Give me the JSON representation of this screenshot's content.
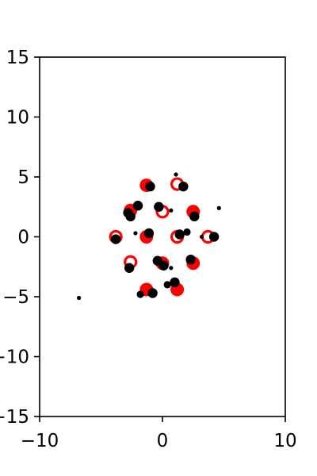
{
  "chart_data": {
    "type": "scatter",
    "title": "",
    "xlabel": "",
    "ylabel": "",
    "xlim": [
      -10,
      10
    ],
    "ylim": [
      -15,
      15
    ],
    "xticks": [
      -10,
      0,
      10
    ],
    "yticks": [
      -15,
      -10,
      -5,
      0,
      5,
      10,
      15
    ],
    "xtick_labels": [
      "−10",
      "0",
      "10"
    ],
    "ytick_labels": [
      "−15",
      "−10",
      "−5",
      "0",
      "5",
      "10",
      "15"
    ],
    "grid": false,
    "legend": "none",
    "colors": {
      "red": "#ff0000",
      "black": "#000000",
      "axes": "#000000",
      "background": "#ffffff"
    },
    "series": [
      {
        "marker": "filled-circle",
        "color": "#ff0000",
        "points": [
          {
            "x": -1.3,
            "y": 4.3
          },
          {
            "x": 2.5,
            "y": 2.1
          },
          {
            "x": -1.3,
            "y": 0.0
          },
          {
            "x": -1.3,
            "y": -4.4
          },
          {
            "x": 1.2,
            "y": -4.4
          },
          {
            "x": 2.5,
            "y": -2.2
          },
          {
            "x": 0.0,
            "y": -2.2
          },
          {
            "x": -2.6,
            "y": 2.2
          }
        ]
      },
      {
        "marker": "open-circle",
        "color": "#ff0000",
        "points": [
          {
            "x": 1.2,
            "y": 4.4
          },
          {
            "x": 0.0,
            "y": 2.1
          },
          {
            "x": -3.8,
            "y": 0.0
          },
          {
            "x": 1.2,
            "y": 0.0
          },
          {
            "x": 3.7,
            "y": 0.0
          },
          {
            "x": -2.6,
            "y": -2.1
          }
        ]
      },
      {
        "marker": "filled-circle-large",
        "color": "#000000",
        "points": [
          {
            "x": -1.0,
            "y": 4.2
          },
          {
            "x": 1.7,
            "y": 4.2
          },
          {
            "x": -2.8,
            "y": 2.0
          },
          {
            "x": -2.6,
            "y": 1.7
          },
          {
            "x": -2.0,
            "y": 2.6
          },
          {
            "x": -0.3,
            "y": 2.5
          },
          {
            "x": 2.6,
            "y": 1.7
          },
          {
            "x": -3.8,
            "y": -0.2
          },
          {
            "x": -1.1,
            "y": 0.3
          },
          {
            "x": 1.4,
            "y": 0.2
          },
          {
            "x": 4.2,
            "y": 0.0
          },
          {
            "x": -0.4,
            "y": -2.0
          },
          {
            "x": 0.1,
            "y": -2.4
          },
          {
            "x": 2.3,
            "y": -1.9
          },
          {
            "x": -2.7,
            "y": -2.6
          },
          {
            "x": 1.0,
            "y": -3.8
          },
          {
            "x": -0.8,
            "y": -4.7
          }
        ]
      },
      {
        "marker": "filled-circle-medium",
        "color": "#000000",
        "points": [
          {
            "x": 2.0,
            "y": 0.4
          },
          {
            "x": 0.4,
            "y": -4.0
          },
          {
            "x": -1.8,
            "y": -4.8
          }
        ]
      },
      {
        "marker": "filled-circle-small",
        "color": "#000000",
        "points": [
          {
            "x": 1.1,
            "y": 5.2
          },
          {
            "x": 4.6,
            "y": 2.4
          },
          {
            "x": 0.7,
            "y": 2.2
          },
          {
            "x": -2.2,
            "y": 0.3
          },
          {
            "x": 0.7,
            "y": -2.6
          },
          {
            "x": 3.2,
            "y": 0.0
          },
          {
            "x": -6.8,
            "y": -5.1
          }
        ]
      }
    ]
  }
}
